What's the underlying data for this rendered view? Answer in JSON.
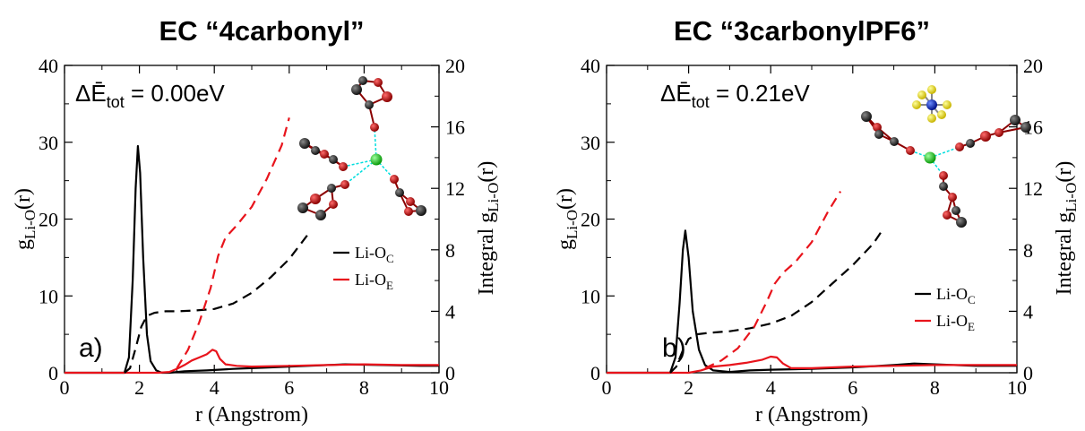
{
  "chart_data": [
    {
      "type": "line",
      "title": "EC “4carbonyl”",
      "xlabel": "r (Angstrom)",
      "ylabel_left": {
        "base": "g",
        "sub": "Li-O",
        "tail": "(r)"
      },
      "ylabel_right": {
        "base": "Integral g",
        "sub": "Li-O",
        "tail": "(r)"
      },
      "xlim": [
        0,
        10
      ],
      "ylim_left": [
        0,
        40
      ],
      "ylim_right": [
        0,
        20
      ],
      "xticks": [
        0,
        2,
        4,
        6,
        8,
        10
      ],
      "yticks_left": [
        0,
        10,
        20,
        30,
        40
      ],
      "yticks_right": [
        0,
        4,
        8,
        12,
        16,
        20
      ],
      "panel_label": "a)",
      "energy_annotation": {
        "prefix": "ΔĒ",
        "sub": "tot",
        "value": " = 0.00eV"
      },
      "legend": [
        {
          "label": "Li-O",
          "sub": "C",
          "color": "#000000"
        },
        {
          "label": "Li-O",
          "sub": "E",
          "color": "#e8141c"
        }
      ],
      "series": [
        {
          "name": "Li-O_C g(r)",
          "axis": "left",
          "color": "#000000",
          "style": "solid",
          "x": [
            0,
            1.6,
            1.72,
            1.82,
            1.9,
            1.96,
            2.02,
            2.1,
            2.2,
            2.3,
            2.45,
            2.6,
            2.8,
            3.2,
            3.8,
            4.5,
            5.5,
            6.5,
            7.5,
            8.5,
            9.5,
            10
          ],
          "y": [
            0,
            0,
            2,
            12,
            24,
            29.5,
            26,
            15,
            5,
            1.5,
            0.3,
            0,
            0,
            0.2,
            0.3,
            0.5,
            0.7,
            0.9,
            1.1,
            1.0,
            0.9,
            0.9
          ]
        },
        {
          "name": "Li-O_E g(r)",
          "axis": "left",
          "color": "#e8141c",
          "style": "solid",
          "x": [
            0,
            2.5,
            2.8,
            3.0,
            3.2,
            3.4,
            3.6,
            3.8,
            3.95,
            4.05,
            4.15,
            4.3,
            4.6,
            5.0,
            6.0,
            7.0,
            8.0,
            9.0,
            10
          ],
          "y": [
            0,
            0,
            0.1,
            0.5,
            1.0,
            1.6,
            2.0,
            2.4,
            3.0,
            2.8,
            1.8,
            1.1,
            0.9,
            0.8,
            0.9,
            1.0,
            1.1,
            1.0,
            1.0
          ]
        },
        {
          "name": "Li-O_C integral",
          "axis": "right",
          "color": "#000000",
          "style": "dashed",
          "x": [
            1.6,
            1.75,
            1.9,
            2.05,
            2.2,
            2.4,
            2.7,
            3.0,
            3.5,
            4.0,
            4.5,
            5.0,
            5.5,
            6.0,
            6.5
          ],
          "y": [
            0,
            0.3,
            1.6,
            3.0,
            3.7,
            3.9,
            4.0,
            4.0,
            4.05,
            4.15,
            4.5,
            5.2,
            6.2,
            7.4,
            9.0
          ]
        },
        {
          "name": "Li-O_E integral",
          "axis": "right",
          "color": "#e8141c",
          "style": "dashed",
          "x": [
            3.0,
            3.3,
            3.6,
            3.9,
            4.1,
            4.3,
            4.6,
            5.0,
            5.4,
            5.8,
            6.0
          ],
          "y": [
            0.3,
            1.5,
            3.3,
            5.5,
            7.6,
            8.8,
            9.6,
            10.8,
            12.6,
            14.8,
            16.6
          ]
        }
      ]
    },
    {
      "type": "line",
      "title": "EC “3carbonylPF6”",
      "xlabel": "r (Angstrom)",
      "ylabel_left": {
        "base": "g",
        "sub": "Li-O",
        "tail": "(r)"
      },
      "ylabel_right": {
        "base": "Integral g",
        "sub": "Li-O",
        "tail": "(r)"
      },
      "xlim": [
        0,
        10
      ],
      "ylim_left": [
        0,
        40
      ],
      "ylim_right": [
        0,
        20
      ],
      "xticks": [
        0,
        2,
        4,
        6,
        8,
        10
      ],
      "yticks_left": [
        0,
        10,
        20,
        30,
        40
      ],
      "yticks_right": [
        0,
        4,
        8,
        12,
        16,
        20
      ],
      "panel_label": "b)",
      "energy_annotation": {
        "prefix": "ΔĒ",
        "sub": "tot",
        "value": " = 0.21eV"
      },
      "legend": [
        {
          "label": "Li-O",
          "sub": "C",
          "color": "#000000"
        },
        {
          "label": "Li-O",
          "sub": "E",
          "color": "#e8141c"
        }
      ],
      "series": [
        {
          "name": "Li-O_C g(r)",
          "axis": "left",
          "color": "#000000",
          "style": "solid",
          "x": [
            0,
            1.55,
            1.68,
            1.78,
            1.86,
            1.92,
            2.0,
            2.1,
            2.25,
            2.4,
            2.6,
            3.0,
            3.5,
            4.0,
            5.0,
            6.0,
            7.0,
            7.5,
            8.0,
            9.0,
            10
          ],
          "y": [
            0,
            0,
            2,
            9,
            16,
            18.5,
            15,
            8,
            3,
            1,
            0.3,
            0.1,
            0.3,
            0.4,
            0.5,
            0.7,
            1.0,
            1.2,
            1.1,
            0.9,
            0.9
          ]
        },
        {
          "name": "Li-O_E g(r)",
          "axis": "left",
          "color": "#e8141c",
          "style": "solid",
          "x": [
            0,
            2.0,
            2.3,
            2.6,
            3.0,
            3.4,
            3.8,
            4.0,
            4.15,
            4.3,
            4.5,
            5.0,
            6.0,
            7.0,
            8.0,
            9.0,
            10
          ],
          "y": [
            0,
            0,
            0.3,
            0.8,
            1.0,
            1.3,
            1.7,
            2.1,
            2.0,
            1.2,
            0.6,
            0.6,
            0.8,
            0.9,
            1.0,
            1.0,
            1.0
          ]
        },
        {
          "name": "Li-O_C integral",
          "axis": "right",
          "color": "#000000",
          "style": "dashed",
          "x": [
            1.55,
            1.7,
            1.85,
            2.0,
            2.2,
            2.5,
            3.0,
            3.5,
            4.0,
            4.5,
            5.0,
            5.5,
            6.0,
            6.5,
            6.7
          ],
          "y": [
            0,
            0.4,
            1.4,
            2.2,
            2.5,
            2.6,
            2.7,
            2.9,
            3.2,
            3.7,
            4.6,
            5.8,
            7.0,
            8.4,
            9.2
          ]
        },
        {
          "name": "Li-O_E integral",
          "axis": "right",
          "color": "#e8141c",
          "style": "dashed",
          "x": [
            2.4,
            2.8,
            3.2,
            3.6,
            3.9,
            4.1,
            4.3,
            4.6,
            5.0,
            5.4,
            5.7
          ],
          "y": [
            0.3,
            0.8,
            1.6,
            3.0,
            4.6,
            5.8,
            6.5,
            7.2,
            8.5,
            10.5,
            11.8
          ]
        }
      ]
    }
  ]
}
